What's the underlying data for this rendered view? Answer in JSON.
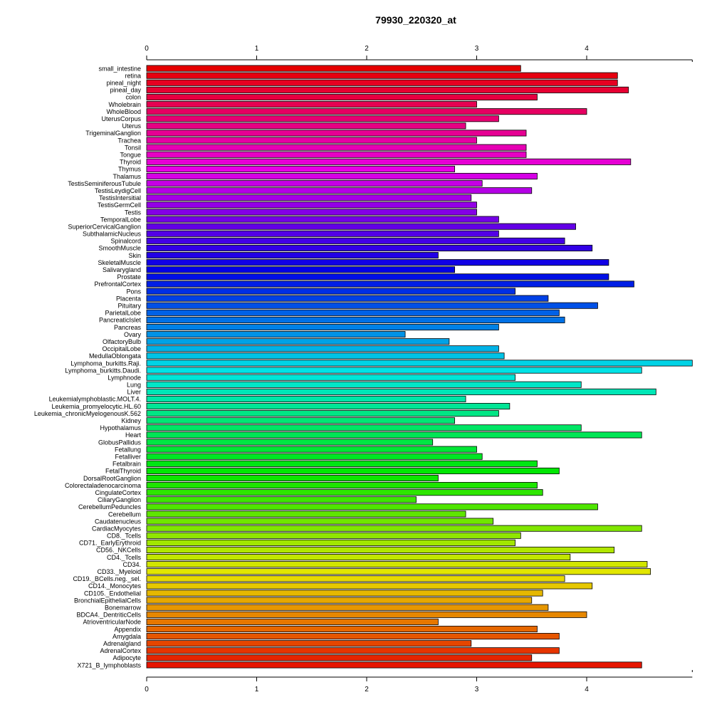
{
  "chart_data": {
    "type": "bar",
    "orientation": "horizontal",
    "title": "79930_220320_at",
    "xlabel": "",
    "ylabel": "",
    "xlim": [
      0,
      4.96
    ],
    "x_ticks": [
      0,
      1,
      2,
      3,
      4
    ],
    "grid": false,
    "legend": "none",
    "color_scheme": "rainbow",
    "categories": [
      "small_intestine",
      "retina",
      "pineal_night",
      "pineal_day",
      "colon",
      "Wholebrain",
      "WholeBlood",
      "UterusCorpus",
      "Uterus",
      "TrigeminalGanglion",
      "Trachea",
      "Tonsil",
      "Tongue",
      "Thyroid",
      "Thymus",
      "Thalamus",
      "TestisSeminiferousTubule",
      "TestisLeydigCell",
      "TestisIntersitial",
      "TestisGermCell",
      "Testis",
      "TemporalLobe",
      "SuperiorCervicalGanglion",
      "SubthalamicNucleus",
      "Spinalcord",
      "SmoothMuscle",
      "Skin",
      "SkeletalMuscle",
      "Salivarygland",
      "Prostate",
      "PrefrontalCortex",
      "Pons",
      "Placenta",
      "Pituitary",
      "ParietalLobe",
      "PancreaticIslet",
      "Pancreas",
      "Ovary",
      "OlfactoryBulb",
      "OccipitalLobe",
      "MedullaOblongata",
      "Lymphoma_burkitts.Raji.",
      "Lymphoma_burkitts.Daudi.",
      "Lymphnode",
      "Lung",
      "Liver",
      "Leukemialymphoblastic.MOLT.4.",
      "Leukemia_promyelocytic.HL.60",
      "Leukemia_chronicMyelogenousK.562",
      "Kidney",
      "Hypothalamus",
      "Heart",
      "GlobusPallidus",
      "Fetallung",
      "Fetalliver",
      "Fetalbrain",
      "FetalThyroid",
      "DorsalRootGanglion",
      "Colorectaladenocarcinoma",
      "CingulateCortex",
      "CiliaryGanglion",
      "CerebellumPeduncles",
      "Cerebellum",
      "Caudatenucleus",
      "CardiacMyocytes",
      "CD8._Tcells",
      "CD71._EarlyErythroid",
      "CD56._NKCells",
      "CD4._Tcells",
      "CD34.",
      "CD33._Myeloid",
      "CD19._BCells.neg._sel.",
      "CD14._Monocytes",
      "CD105._Endothelial",
      "BronchialEpithelialCells",
      "Bonemarrow",
      "BDCA4._DentriticCells",
      "AtrioventricularNode",
      "Appendix",
      "Amygdala",
      "Adrenalgland",
      "AdrenalCortex",
      "Adipocyte",
      "X721_B_lymphoblasts"
    ],
    "values": [
      3.4,
      4.28,
      4.28,
      4.38,
      3.55,
      3.0,
      4.0,
      3.2,
      2.9,
      3.45,
      3.0,
      3.45,
      3.45,
      4.4,
      2.8,
      3.55,
      3.05,
      3.5,
      2.95,
      3.0,
      3.0,
      3.2,
      3.9,
      3.2,
      3.8,
      4.05,
      2.65,
      4.2,
      2.8,
      4.2,
      4.43,
      3.35,
      3.65,
      4.1,
      3.75,
      3.8,
      3.2,
      2.35,
      2.75,
      3.2,
      3.25,
      4.96,
      4.5,
      3.35,
      3.95,
      4.63,
      2.9,
      3.3,
      3.2,
      2.8,
      3.95,
      4.5,
      2.6,
      3.0,
      3.05,
      3.55,
      3.75,
      2.65,
      3.55,
      3.6,
      2.45,
      4.1,
      2.9,
      3.15,
      4.5,
      3.4,
      3.35,
      4.25,
      3.85,
      4.55,
      4.58,
      3.8,
      4.05,
      3.6,
      3.5,
      3.65,
      4.0,
      2.65,
      3.55,
      3.75,
      2.95,
      3.75,
      3.5,
      4.5
    ]
  }
}
